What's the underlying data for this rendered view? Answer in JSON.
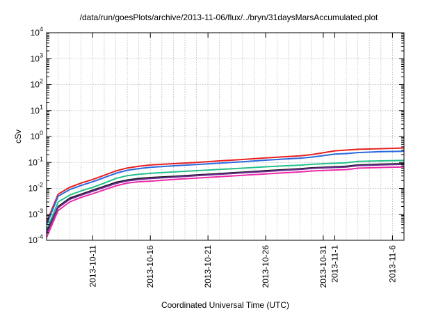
{
  "chart_data": {
    "type": "line",
    "title": "/data/run/goesPlots/archive/2013-11-06/flux/../bryn/31daysMarsAccumulated.plot",
    "xlabel": "Coordinated Universal Time (UTC)",
    "ylabel": "cSv",
    "yscale": "log",
    "ylim": [
      0.0001,
      10000
    ],
    "xlim": [
      "2013-10-07",
      "2013-11-07"
    ],
    "grid": true,
    "legend": "none",
    "y_ticks": [
      {
        "value": 0.0001,
        "base": "10",
        "exp": "-4"
      },
      {
        "value": 0.001,
        "base": "10",
        "exp": "-3"
      },
      {
        "value": 0.01,
        "base": "10",
        "exp": "-2"
      },
      {
        "value": 0.1,
        "base": "10",
        "exp": "-1"
      },
      {
        "value": 1,
        "base": "10",
        "exp": "0"
      },
      {
        "value": 10,
        "base": "10",
        "exp": "1"
      },
      {
        "value": 100,
        "base": "10",
        "exp": "2"
      },
      {
        "value": 1000,
        "base": "10",
        "exp": "3"
      },
      {
        "value": 10000,
        "base": "10",
        "exp": "4"
      }
    ],
    "x_ticks": [
      {
        "date": "2013-10-11",
        "label": "2013-10-11"
      },
      {
        "date": "2013-10-16",
        "label": "2013-10-16"
      },
      {
        "date": "2013-10-21",
        "label": "2013-10-21"
      },
      {
        "date": "2013-10-26",
        "label": "2013-10-26"
      },
      {
        "date": "2013-10-31",
        "label": "2013-10-31"
      },
      {
        "date": "2013-11-01",
        "label": "2013-11-1"
      },
      {
        "date": "2013-11-06",
        "label": "2013-11-6"
      }
    ],
    "series": [
      {
        "color": "#e8201f",
        "x": [
          "2013-10-07",
          "2013-10-08",
          "2013-10-09",
          "2013-10-10",
          "2013-10-11",
          "2013-10-12",
          "2013-10-13",
          "2013-10-14",
          "2013-10-15",
          "2013-10-16",
          "2013-10-18",
          "2013-10-20",
          "2013-10-22",
          "2013-10-24",
          "2013-10-26",
          "2013-10-28",
          "2013-10-29",
          "2013-10-30",
          "2013-11-01",
          "2013-11-02",
          "2013-11-03",
          "2013-11-05",
          "2013-11-07"
        ],
        "y": [
          0.0005,
          0.006,
          0.011,
          0.016,
          0.022,
          0.032,
          0.047,
          0.061,
          0.071,
          0.08,
          0.09,
          0.1,
          0.115,
          0.13,
          0.15,
          0.17,
          0.18,
          0.2,
          0.28,
          0.3,
          0.32,
          0.34,
          0.36
        ]
      },
      {
        "color": "#2a6ae0",
        "x": [
          "2013-10-07",
          "2013-10-08",
          "2013-10-09",
          "2013-10-10",
          "2013-10-11",
          "2013-10-12",
          "2013-10-13",
          "2013-10-14",
          "2013-10-15",
          "2013-10-16",
          "2013-10-18",
          "2013-10-20",
          "2013-10-22",
          "2013-10-24",
          "2013-10-26",
          "2013-10-28",
          "2013-10-29",
          "2013-10-30",
          "2013-11-01",
          "2013-11-02",
          "2013-11-03",
          "2013-11-05",
          "2013-11-07"
        ],
        "y": [
          0.0004,
          0.005,
          0.009,
          0.013,
          0.018,
          0.026,
          0.038,
          0.05,
          0.058,
          0.065,
          0.074,
          0.083,
          0.094,
          0.107,
          0.122,
          0.138,
          0.146,
          0.16,
          0.21,
          0.22,
          0.24,
          0.26,
          0.27
        ]
      },
      {
        "color": "#23c08a",
        "x": [
          "2013-10-07",
          "2013-10-08",
          "2013-10-09",
          "2013-10-10",
          "2013-10-11",
          "2013-10-12",
          "2013-10-13",
          "2013-10-14",
          "2013-10-15",
          "2013-10-16",
          "2013-10-18",
          "2013-10-20",
          "2013-10-22",
          "2013-10-24",
          "2013-10-26",
          "2013-10-28",
          "2013-10-29",
          "2013-10-30",
          "2013-11-01",
          "2013-11-02",
          "2013-11-03",
          "2013-11-05",
          "2013-11-07"
        ],
        "y": [
          0.00025,
          0.003,
          0.0055,
          0.008,
          0.011,
          0.016,
          0.024,
          0.031,
          0.035,
          0.038,
          0.043,
          0.048,
          0.054,
          0.06,
          0.068,
          0.075,
          0.079,
          0.085,
          0.093,
          0.097,
          0.11,
          0.115,
          0.12
        ]
      },
      {
        "color": "#1a1a1a",
        "x": [
          "2013-10-07",
          "2013-10-08",
          "2013-10-09",
          "2013-10-10",
          "2013-10-11",
          "2013-10-12",
          "2013-10-13",
          "2013-10-14",
          "2013-10-15",
          "2013-10-16",
          "2013-10-18",
          "2013-10-20",
          "2013-10-22",
          "2013-10-24",
          "2013-10-26",
          "2013-10-28",
          "2013-10-29",
          "2013-10-30",
          "2013-11-01",
          "2013-11-02",
          "2013-11-03",
          "2013-11-05",
          "2013-11-07"
        ],
        "y": [
          0.0002,
          0.002,
          0.0042,
          0.006,
          0.0085,
          0.012,
          0.017,
          0.021,
          0.024,
          0.026,
          0.029,
          0.033,
          0.037,
          0.042,
          0.048,
          0.054,
          0.057,
          0.062,
          0.068,
          0.071,
          0.08,
          0.086,
          0.09
        ]
      },
      {
        "color": "#6a2c91",
        "x": [
          "2013-10-07",
          "2013-10-08",
          "2013-10-09",
          "2013-10-10",
          "2013-10-11",
          "2013-10-12",
          "2013-10-13",
          "2013-10-14",
          "2013-10-15",
          "2013-10-16",
          "2013-10-18",
          "2013-10-20",
          "2013-10-22",
          "2013-10-24",
          "2013-10-26",
          "2013-10-28",
          "2013-10-29",
          "2013-10-30",
          "2013-11-01",
          "2013-11-02",
          "2013-11-03",
          "2013-11-05",
          "2013-11-07"
        ],
        "y": [
          0.00018,
          0.0018,
          0.0038,
          0.0055,
          0.0078,
          0.011,
          0.0155,
          0.0195,
          0.022,
          0.024,
          0.027,
          0.031,
          0.035,
          0.04,
          0.045,
          0.051,
          0.054,
          0.059,
          0.064,
          0.067,
          0.075,
          0.081,
          0.085
        ]
      },
      {
        "color": "#ec2aa8",
        "x": [
          "2013-10-07",
          "2013-10-08",
          "2013-10-09",
          "2013-10-10",
          "2013-10-11",
          "2013-10-12",
          "2013-10-13",
          "2013-10-14",
          "2013-10-15",
          "2013-10-16",
          "2013-10-18",
          "2013-10-20",
          "2013-10-22",
          "2013-10-24",
          "2013-10-26",
          "2013-10-28",
          "2013-10-29",
          "2013-10-30",
          "2013-11-01",
          "2013-11-02",
          "2013-11-03",
          "2013-11-05",
          "2013-11-07"
        ],
        "y": [
          0.00013,
          0.0014,
          0.003,
          0.0045,
          0.0062,
          0.0088,
          0.0125,
          0.016,
          0.018,
          0.019,
          0.022,
          0.025,
          0.028,
          0.032,
          0.036,
          0.041,
          0.043,
          0.047,
          0.051,
          0.053,
          0.06,
          0.064,
          0.067
        ]
      }
    ]
  }
}
